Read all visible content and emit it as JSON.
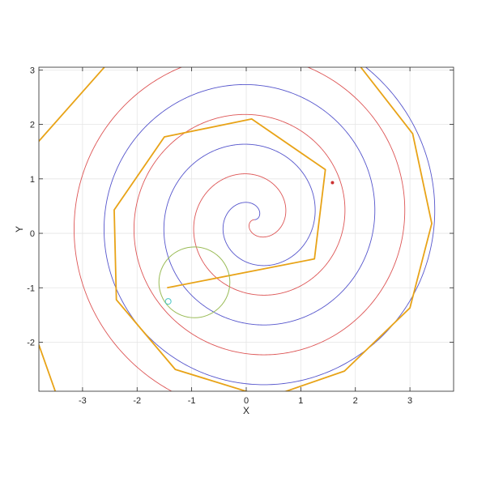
{
  "chart_data": {
    "type": "line",
    "title": "",
    "xlabel": "X",
    "ylabel": "Y",
    "xlim": [
      -3.8,
      3.8
    ],
    "ylim": [
      -2.9,
      3.05
    ],
    "xticks": [
      -3,
      -2,
      -1,
      0,
      1,
      2,
      3
    ],
    "yticks": [
      -2,
      -1,
      0,
      1,
      2,
      3
    ],
    "x_tick_labels": [
      "-3",
      "-2",
      "-1",
      "0",
      "1",
      "2",
      "3"
    ],
    "y_tick_labels": [
      "-2",
      "-1",
      "0",
      "1",
      "2",
      "3"
    ],
    "grid": true,
    "legend": "none",
    "colors": {
      "blue_spiral": "#5555cc",
      "red_spiral": "#dd5555",
      "polyline": "#e8a317",
      "circle": "#99bb55",
      "marker": "#44c4c4",
      "point": "#cc3333",
      "grid": "#e5e5e5",
      "axes": "#262626"
    },
    "series": [
      {
        "type": "spiral",
        "color_key": "blue_spiral",
        "center": [
          0.15,
          0.25
        ],
        "turns": 3.2,
        "radius_per_turn": 1.1
      },
      {
        "type": "spiral",
        "color_key": "red_spiral",
        "center": [
          0.15,
          0.25
        ],
        "turns": 3.2,
        "radius_per_turn": 1.1,
        "phase_offset_deg": 180
      },
      {
        "type": "polyline",
        "color_key": "polyline",
        "points": [
          [
            -1.45,
            -1.0
          ],
          [
            1.25,
            -0.47
          ],
          [
            1.45,
            1.17
          ],
          [
            0.1,
            2.1
          ],
          [
            -1.5,
            1.77
          ],
          [
            -2.42,
            0.43
          ],
          [
            -2.38,
            -1.22
          ],
          [
            -1.3,
            -2.5
          ],
          [
            0.48,
            -3.05
          ]
        ]
      },
      {
        "type": "polyline",
        "color_key": "polyline",
        "points": [
          [
            -3.9,
            1.58
          ],
          [
            -2.6,
            3.05
          ]
        ]
      },
      {
        "type": "polyline",
        "color_key": "polyline",
        "points": [
          [
            2.1,
            3.05
          ],
          [
            3.05,
            1.83
          ],
          [
            3.4,
            0.18
          ],
          [
            3.0,
            -1.37
          ],
          [
            1.8,
            -2.53
          ],
          [
            0.3,
            -3.05
          ]
        ]
      },
      {
        "type": "polyline",
        "color_key": "polyline",
        "points": [
          [
            -3.8,
            -2.05
          ],
          [
            -3.5,
            -2.9
          ]
        ]
      },
      {
        "type": "circle",
        "color_key": "circle",
        "center": [
          -0.95,
          -0.9
        ],
        "radius": 0.65
      },
      {
        "type": "marker",
        "color_key": "marker",
        "x": -1.43,
        "y": -1.25
      },
      {
        "type": "marker",
        "color_key": "point",
        "x": 1.58,
        "y": 0.93
      }
    ]
  }
}
